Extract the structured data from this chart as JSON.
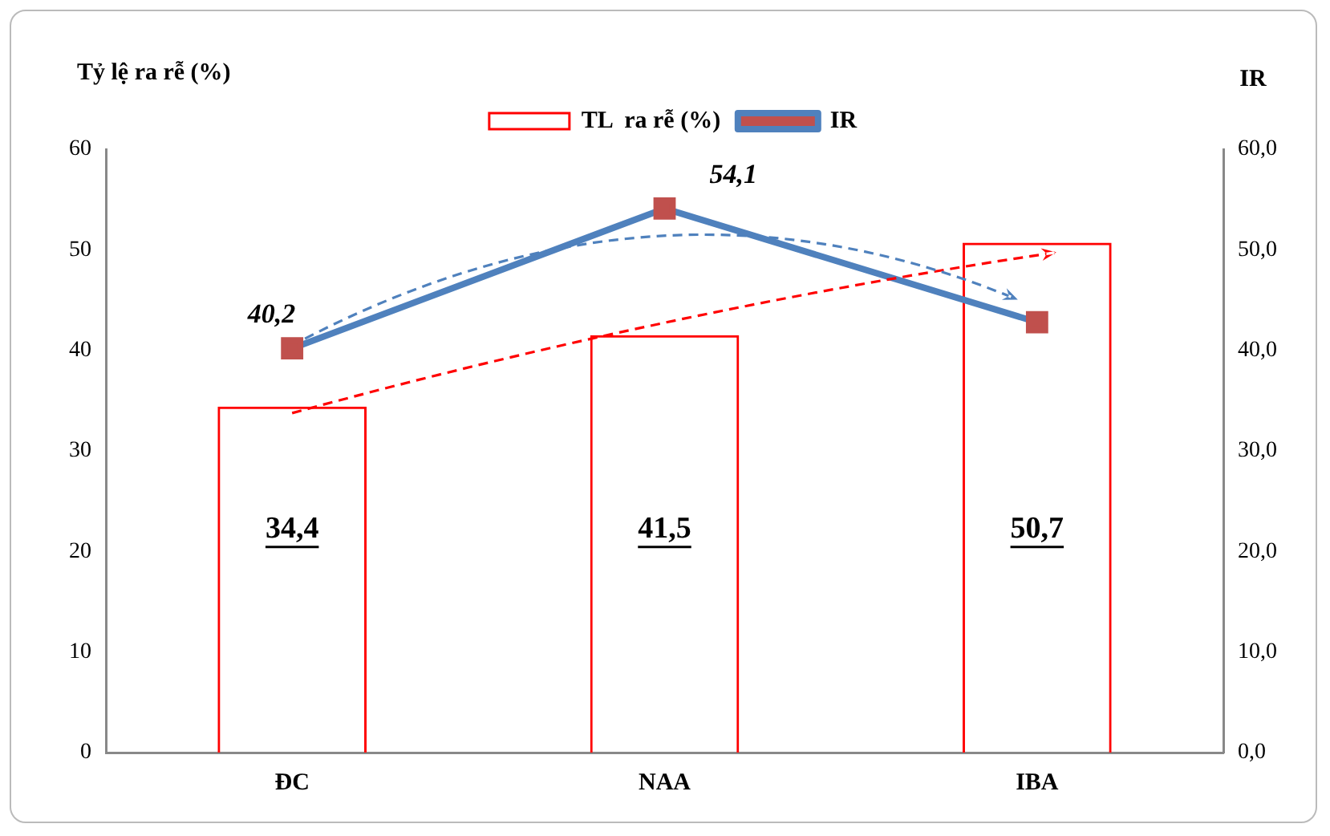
{
  "chart_data": {
    "type": "bar",
    "ylabel": "Tỷ lệ ra rễ (%)",
    "y2label": "IR",
    "categories": [
      "ĐC",
      "NAA",
      "IBA"
    ],
    "series": [
      {
        "name": "TL  ra rễ (%)",
        "color": "#ff0000",
        "values": [
          34.4,
          41.5,
          50.7
        ],
        "value_labels": [
          "34,4",
          "41,5",
          "50,7"
        ]
      },
      {
        "name": "IR",
        "type": "line",
        "axis": "y2",
        "color": "#4f81bd",
        "colors": [
          "#c0504d",
          "#c0504d",
          "#c0504d"
        ],
        "values": [
          40.2,
          54.1,
          42.8
        ],
        "value_labels": [
          "40,2",
          "54,1",
          null
        ]
      }
    ],
    "ylim": [
      0,
      60
    ],
    "yticks": [
      0,
      10,
      20,
      30,
      40,
      50,
      60
    ],
    "y2lim": [
      0,
      60
    ],
    "y2ticks": [
      {
        "value": 0,
        "label": "0,0"
      },
      {
        "value": 10,
        "label": "10,0"
      },
      {
        "value": 20,
        "label": "20,0"
      },
      {
        "value": 30,
        "label": "30,0"
      },
      {
        "value": 40,
        "label": "40,0"
      },
      {
        "value": 50,
        "label": "50,0"
      },
      {
        "value": 60,
        "label": "60,0"
      }
    ],
    "grid": false,
    "legend": "top",
    "marker": "square",
    "line_style": "solid"
  }
}
